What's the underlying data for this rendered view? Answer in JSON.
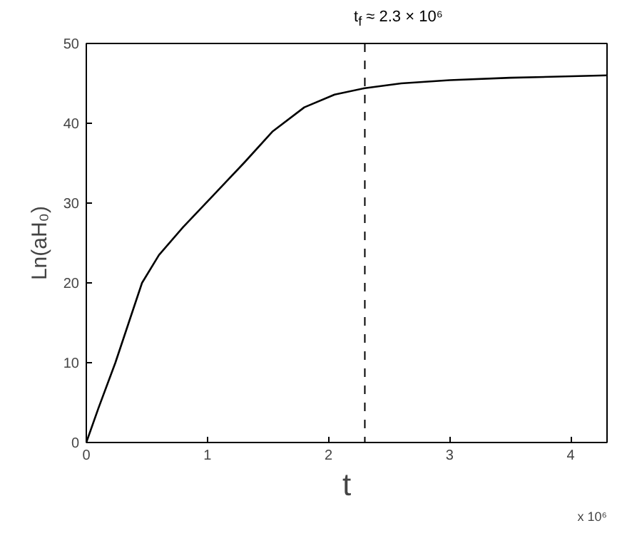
{
  "chart_data": {
    "type": "line",
    "xlabel": "t",
    "ylabel": "Ln(aH₀)",
    "x": [
      0,
      0.1,
      0.24,
      0.35,
      0.46,
      0.6,
      0.8,
      1.05,
      1.3,
      1.54,
      1.8,
      2.05,
      2.3,
      2.6,
      3.0,
      3.5,
      4.3
    ],
    "series": [
      {
        "color": "#000000",
        "values": [
          0,
          4.3,
          10,
          15,
          20,
          23.5,
          27,
          31,
          35,
          39,
          42,
          43.6,
          44.4,
          45,
          45.4,
          45.7,
          46
        ]
      }
    ],
    "xlim": [
      0,
      4.3
    ],
    "ylim": [
      0,
      50
    ],
    "xticks": [
      0,
      1,
      2,
      3,
      4
    ],
    "yticks": [
      0,
      10,
      20,
      30,
      40,
      50
    ],
    "ref_lines": [
      {
        "axis": "x",
        "value": 2.3,
        "label": "t$_{f}$ ≈ 2.3 × 10⁶",
        "color": "#000000",
        "line_style": "dashed"
      }
    ],
    "annotations": [
      "x 10⁶"
    ],
    "grid": false,
    "marker": "none",
    "line_style": "solid"
  }
}
